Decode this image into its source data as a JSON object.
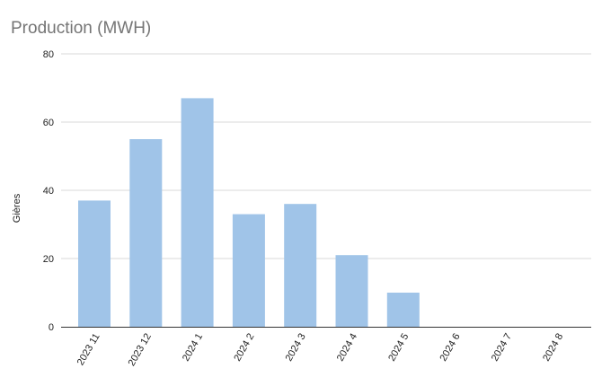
{
  "chart_data": {
    "type": "bar",
    "title": "Production (MWH)",
    "xlabel": "",
    "ylabel": "Gières",
    "categories": [
      "2023 11",
      "2023 12",
      "2024 1",
      "2024 2",
      "2024 3",
      "2024 4",
      "2024 5",
      "2024 6",
      "2024 7",
      "2024 8"
    ],
    "values": [
      37,
      55,
      67,
      33,
      36,
      21,
      10,
      0,
      0,
      0
    ],
    "ylim": [
      0,
      80
    ],
    "yticks": [
      0,
      20,
      40,
      60,
      80
    ],
    "grid": true,
    "legend": "none",
    "bar_color": "#a0c4e8"
  }
}
